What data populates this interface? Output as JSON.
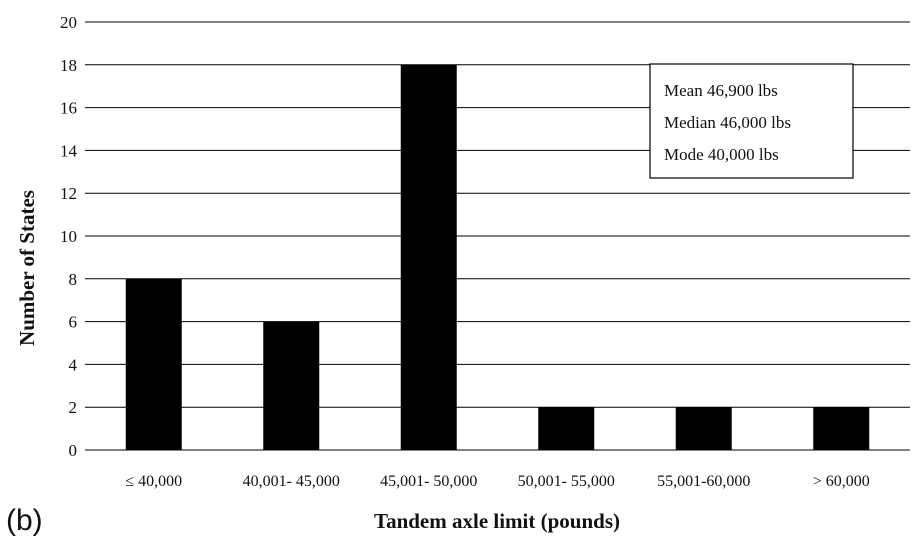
{
  "panel_label": "(b)",
  "chart_data": {
    "type": "bar",
    "categories": [
      "≤ 40,000",
      "40,001- 45,000",
      "45,001- 50,000",
      "50,001- 55,000",
      "55,001-60,000",
      "> 60,000"
    ],
    "values": [
      8,
      6,
      18,
      2,
      2,
      2
    ],
    "xlabel": "Tandem axle limit (pounds)",
    "ylabel": "Number of States",
    "ylim": [
      0,
      20
    ],
    "yticks": [
      0,
      2,
      4,
      6,
      8,
      10,
      12,
      14,
      16,
      18,
      20
    ],
    "grid": "horizontal",
    "bar_color": "#000000",
    "annotation": [
      "Mean 46,900 lbs",
      "Median 46,000 lbs",
      "Mode 40,000 lbs"
    ]
  }
}
